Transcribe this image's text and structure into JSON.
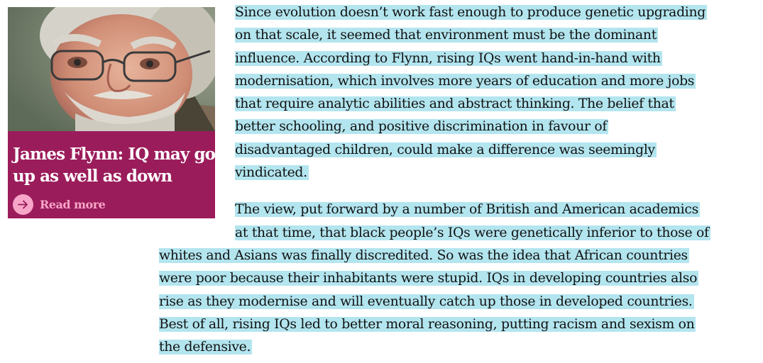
{
  "card": {
    "headline_lines": [
      "James Flynn: IQ may go",
      "up as well as down"
    ],
    "read_more_label": "Read more",
    "icon": "arrow-right-icon",
    "background_color": "#9b1c5b",
    "accent_color": "#f7a6c8"
  },
  "article": {
    "selection_color": "#b3e5ef",
    "paragraph_1": [
      "Since evolution doesn’t work fast enough to produce genetic upgrading",
      "on that scale, it seemed that environment must be the dominant",
      "influence. According to Flynn, rising IQs went hand-in-hand with",
      "modernisation, which involves more years of education and more jobs",
      "that require analytic abilities and abstract thinking. The belief that",
      "better schooling, and positive discrimination in favour of",
      "disadvantaged children, could make a difference was seemingly",
      "vindicated."
    ],
    "paragraph_2": [
      "The view, put forward by a number of British and American academics",
      "at that time, that black people’s IQs were genetically inferior to those of",
      "whites and Asians was finally discredited. So was the idea that African countries",
      "were poor because their inhabitants were stupid. IQs in developing countries also",
      "rise as they modernise and will eventually catch up those in developed countries.",
      "Best of all, rising IQs led to better moral reasoning, putting racism and sexism on",
      "the defensive."
    ]
  }
}
